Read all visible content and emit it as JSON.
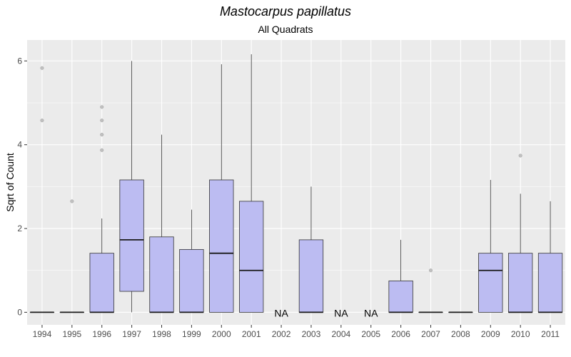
{
  "chart_data": {
    "type": "box",
    "title": "Mastocarpus papillatus",
    "subtitle": "All Quadrats",
    "xlabel": "",
    "ylabel": "Sqrt of Count",
    "ylim": [
      -0.3,
      6.5
    ],
    "yticks": [
      0,
      2,
      4,
      6
    ],
    "grid": true,
    "legend": "none",
    "colors": {
      "panel": "#EBEBEB",
      "grid_major": "#FFFFFF",
      "box_fill": "#BCBCF2",
      "box_stroke": "#333333",
      "median": "#1a1a1a",
      "outlier": "#B3B3B3"
    },
    "na_label": "NA",
    "boxes": [
      {
        "year": "1994",
        "min": 0,
        "q1": 0,
        "median": 0,
        "q3": 0,
        "max": 0,
        "outliers": [
          4.58,
          5.83
        ]
      },
      {
        "year": "1995",
        "min": 0,
        "q1": 0,
        "median": 0,
        "q3": 0,
        "max": 0,
        "outliers": [
          2.65
        ]
      },
      {
        "year": "1996",
        "min": 0,
        "q1": 0,
        "median": 0,
        "q3": 1.41,
        "max": 2.24,
        "outliers": [
          3.87,
          4.24,
          4.58,
          4.9
        ]
      },
      {
        "year": "1997",
        "min": 0,
        "q1": 0.5,
        "median": 1.73,
        "q3": 3.16,
        "max": 6.0,
        "outliers": []
      },
      {
        "year": "1998",
        "min": 0,
        "q1": 0,
        "median": 0,
        "q3": 1.8,
        "max": 4.24,
        "outliers": []
      },
      {
        "year": "1999",
        "min": 0,
        "q1": 0,
        "median": 0,
        "q3": 1.5,
        "max": 2.45,
        "outliers": []
      },
      {
        "year": "2000",
        "min": 0,
        "q1": 0,
        "median": 1.41,
        "q3": 3.16,
        "max": 5.92,
        "outliers": []
      },
      {
        "year": "2001",
        "min": 0,
        "q1": 0,
        "median": 1.0,
        "q3": 2.65,
        "max": 6.16,
        "outliers": []
      },
      {
        "year": "2002",
        "na": true
      },
      {
        "year": "2003",
        "min": 0,
        "q1": 0,
        "median": 0,
        "q3": 1.73,
        "max": 3.0,
        "outliers": []
      },
      {
        "year": "2004",
        "na": true
      },
      {
        "year": "2005",
        "na": true
      },
      {
        "year": "2006",
        "min": 0,
        "q1": 0,
        "median": 0,
        "q3": 0.75,
        "max": 1.73,
        "outliers": []
      },
      {
        "year": "2007",
        "min": 0,
        "q1": 0,
        "median": 0,
        "q3": 0,
        "max": 0,
        "outliers": [
          1.0
        ]
      },
      {
        "year": "2008",
        "min": 0,
        "q1": 0,
        "median": 0,
        "q3": 0,
        "max": 0,
        "outliers": []
      },
      {
        "year": "2009",
        "min": 0,
        "q1": 0,
        "median": 1.0,
        "q3": 1.41,
        "max": 3.16,
        "outliers": []
      },
      {
        "year": "2010",
        "min": 0,
        "q1": 0,
        "median": 0,
        "q3": 1.41,
        "max": 2.83,
        "outliers": [
          3.74
        ]
      },
      {
        "year": "2011",
        "min": 0,
        "q1": 0,
        "median": 0,
        "q3": 1.41,
        "max": 2.65,
        "outliers": []
      }
    ]
  }
}
